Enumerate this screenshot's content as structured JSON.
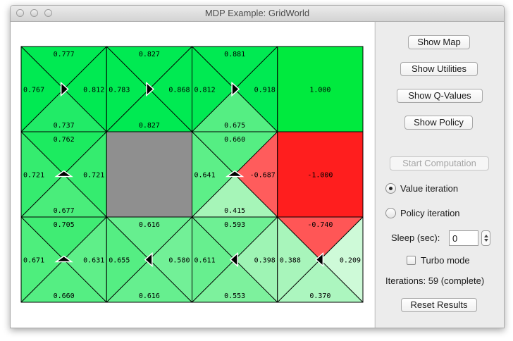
{
  "window": {
    "title": "MDP Example: GridWorld"
  },
  "grid": {
    "rows": [
      [
        {
          "type": "q",
          "n": "0.777",
          "e": "0.812",
          "s": "0.737",
          "w": "0.767",
          "colors": {
            "n": "#00ea52",
            "e": "#00ea52",
            "s": "#21eb67",
            "w": "#00ea52"
          },
          "arrow": "east"
        },
        {
          "type": "q",
          "n": "0.827",
          "e": "0.868",
          "s": "0.827",
          "w": "0.783",
          "colors": {
            "n": "#00ea52",
            "e": "#00ea52",
            "s": "#00ea52",
            "w": "#00ea52"
          },
          "arrow": "east"
        },
        {
          "type": "q",
          "n": "0.881",
          "e": "0.918",
          "s": "0.675",
          "w": "0.812",
          "colors": {
            "n": "#00ea52",
            "e": "#00ea52",
            "s": "#55ee83",
            "w": "#00ea52"
          },
          "arrow": "east"
        },
        {
          "type": "terminal",
          "value": "1.000",
          "color": "#00ea3e"
        }
      ],
      [
        {
          "type": "q",
          "n": "0.762",
          "e": "0.721",
          "s": "0.677",
          "w": "0.721",
          "colors": {
            "n": "#1ceb60",
            "e": "#35ec6f",
            "s": "#4aed7b",
            "w": "#35ec6f"
          },
          "arrow": "north"
        },
        {
          "type": "wall",
          "color": "#8f8f8f"
        },
        {
          "type": "q",
          "n": "0.660",
          "e": "-0.687",
          "s": "0.415",
          "w": "0.641",
          "colors": {
            "n": "#55ee83",
            "e": "#ff5c5c",
            "s": "#a6f5b8",
            "w": "#5def88"
          },
          "arrow": "north"
        },
        {
          "type": "terminal",
          "value": "-1.000",
          "color": "#ff1e1e"
        }
      ],
      [
        {
          "type": "q",
          "n": "0.705",
          "e": "0.631",
          "s": "0.660",
          "w": "0.671",
          "colors": {
            "n": "#40ec74",
            "e": "#5fef89",
            "s": "#55ee83",
            "w": "#4eee7d"
          },
          "arrow": "north"
        },
        {
          "type": "q",
          "n": "0.616",
          "e": "0.580",
          "s": "0.616",
          "w": "0.655",
          "colors": {
            "n": "#66ef8f",
            "e": "#72f097",
            "s": "#66ef8f",
            "w": "#55ee83"
          },
          "arrow": "west"
        },
        {
          "type": "q",
          "n": "0.593",
          "e": "0.398",
          "s": "0.553",
          "w": "0.611",
          "colors": {
            "n": "#6ef094",
            "e": "#9ef4b4",
            "s": "#7df19d",
            "w": "#67ef8f"
          },
          "arrow": "west"
        },
        {
          "type": "q",
          "n": "-0.740",
          "e": "0.209",
          "s": "0.370",
          "w": "0.388",
          "colors": {
            "n": "#ff5656",
            "e": "#cefad8",
            "s": "#acf6bf",
            "w": "#a8f5bb"
          },
          "arrow": "west"
        }
      ]
    ]
  },
  "controls": {
    "show_map": "Show Map",
    "show_utilities": "Show Utilities",
    "show_qvalues": "Show Q-Values",
    "show_policy": "Show Policy",
    "start_computation": "Start Computation",
    "value_iteration": "Value iteration",
    "policy_iteration": "Policy iteration",
    "selected_algorithm": "Value iteration",
    "sleep_label": "Sleep (sec):",
    "sleep_value": "0",
    "turbo_label": "Turbo mode",
    "turbo_checked": false,
    "iterations_label": "Iterations: 59 (complete)",
    "reset_results": "Reset Results"
  }
}
